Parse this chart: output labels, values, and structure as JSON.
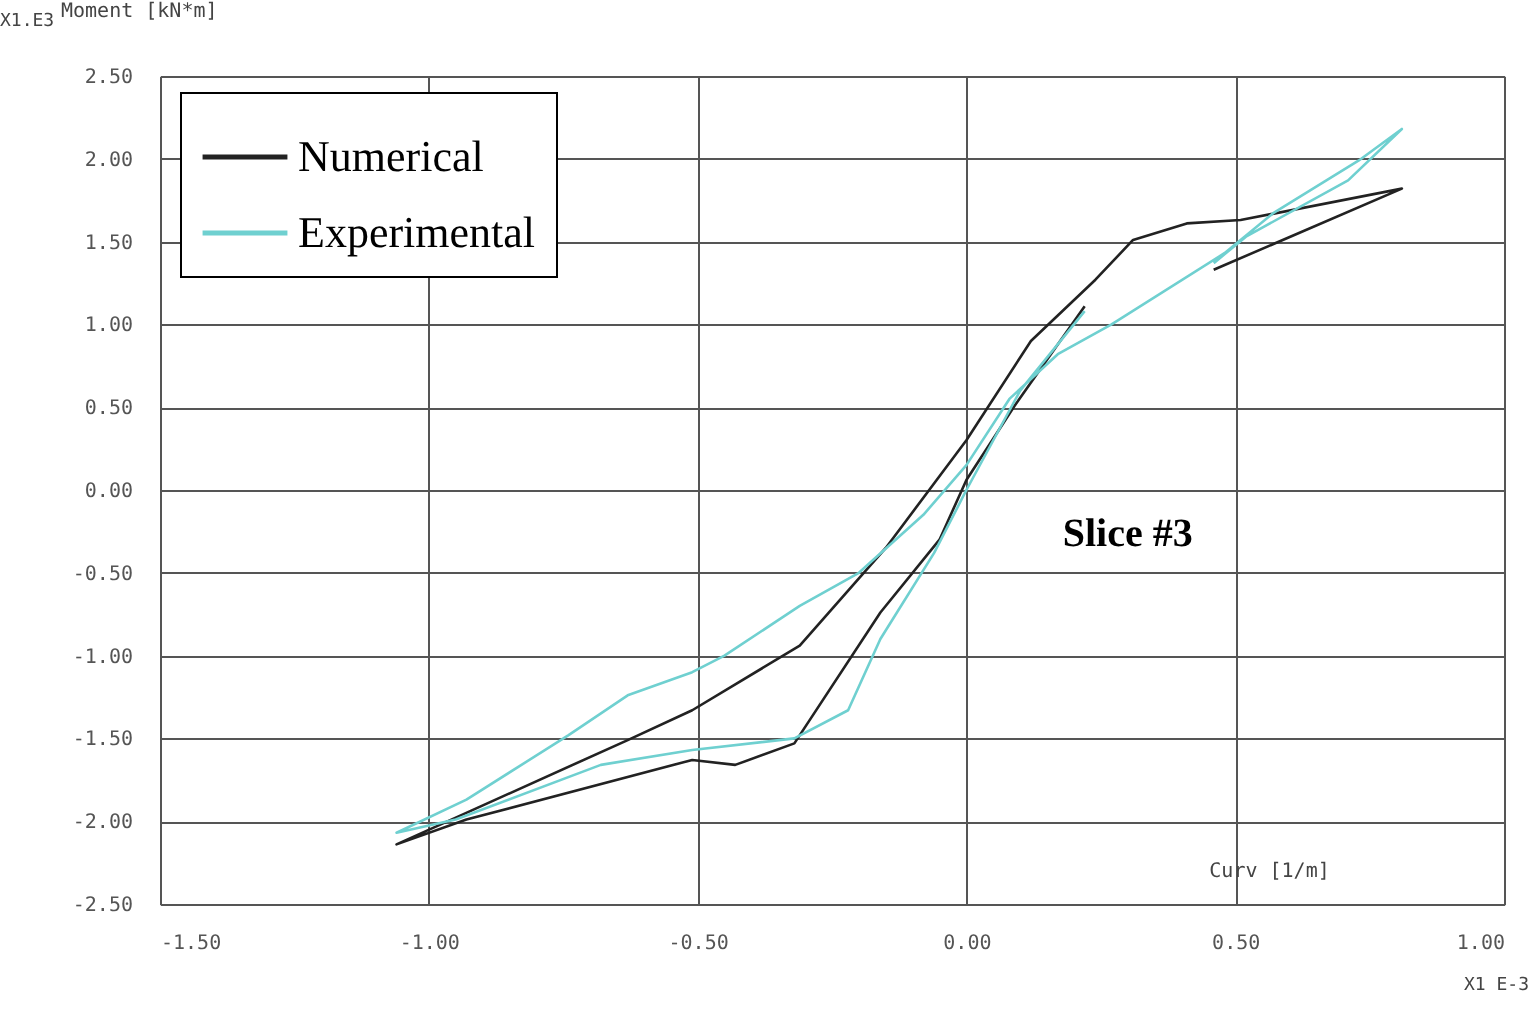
{
  "chart_data": {
    "type": "line",
    "ylabel": "Moment [kN*m]",
    "xlabel": "Curv [1/m]",
    "annotations": [
      "X1.E3",
      "X1 E-3",
      "Slice #3"
    ],
    "xlim": [
      -1.5,
      1.0
    ],
    "xticks": [
      {
        "value": -1.5,
        "label": "-1.50"
      },
      {
        "value": -1.0,
        "label": "-1.00"
      },
      {
        "value": -0.5,
        "label": "-0.50"
      },
      {
        "value": 0.0,
        "label": "0.00"
      },
      {
        "value": 0.5,
        "label": "0.50"
      },
      {
        "value": 1.0,
        "label": "1.00"
      }
    ],
    "ylim": [
      -2.5,
      2.5
    ],
    "yticks": [
      {
        "value": -2.5,
        "label": "-2.50"
      },
      {
        "value": -2.0,
        "label": "-2.00"
      },
      {
        "value": -1.5,
        "label": "-1.50"
      },
      {
        "value": -1.0,
        "label": "-1.00"
      },
      {
        "value": -0.5,
        "label": "-0.50"
      },
      {
        "value": 0.0,
        "label": "0.00"
      },
      {
        "value": 0.5,
        "label": "0.50"
      },
      {
        "value": 1.0,
        "label": "1.00"
      },
      {
        "value": 1.5,
        "label": "1.50"
      },
      {
        "value": 2.0,
        "label": "2.00"
      },
      {
        "value": 2.5,
        "label": "2.50"
      }
    ],
    "grid": true,
    "legend": "top left",
    "marker": "none",
    "line_style": "solid",
    "series": [
      {
        "name": "Numerical",
        "color": "#222222",
        "x": [
          0.46,
          0.81,
          0.51,
          0.41,
          0.31,
          0.24,
          0.12,
          0.0,
          -0.15,
          -0.31,
          -0.51,
          -0.63,
          -1.06,
          -0.93,
          -0.51,
          -0.43,
          -0.32,
          -0.16,
          -0.05,
          0.0,
          0.09,
          0.22
        ],
        "values": [
          1.33,
          1.82,
          1.63,
          1.61,
          1.51,
          1.27,
          0.9,
          0.3,
          -0.35,
          -0.94,
          -1.33,
          -1.51,
          -2.14,
          -1.99,
          -1.63,
          -1.66,
          -1.53,
          -0.74,
          -0.3,
          0.06,
          0.51,
          1.11
        ]
      },
      {
        "name": "Experimental",
        "color": "#6fd0d0",
        "x": [
          0.22,
          0.1,
          0.0,
          -0.06,
          -0.16,
          -0.22,
          -0.32,
          -0.51,
          -0.68,
          -0.95,
          -1.06,
          -0.93,
          -0.74,
          -0.63,
          -0.51,
          -0.45,
          -0.31,
          -0.2,
          -0.08,
          0.0,
          0.08,
          0.17,
          0.27,
          0.48,
          0.57,
          0.73,
          0.81,
          0.71,
          0.52,
          0.46
        ],
        "values": [
          1.08,
          0.6,
          0.0,
          -0.38,
          -0.9,
          -1.33,
          -1.5,
          -1.57,
          -1.66,
          -1.99,
          -2.07,
          -1.87,
          -1.48,
          -1.24,
          -1.1,
          -1.0,
          -0.7,
          -0.5,
          -0.15,
          0.15,
          0.55,
          0.82,
          1.0,
          1.43,
          1.67,
          1.99,
          2.18,
          1.87,
          1.53,
          1.37
        ]
      }
    ]
  }
}
